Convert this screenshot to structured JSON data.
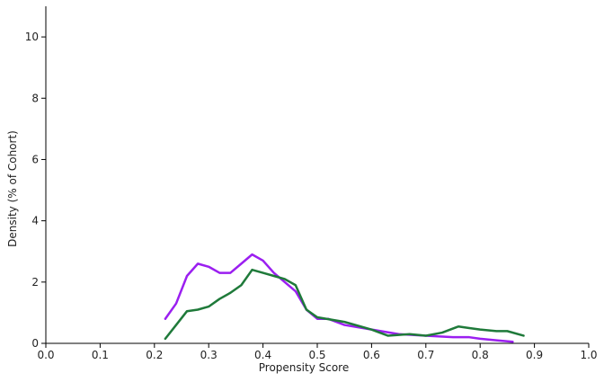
{
  "chart_data": {
    "type": "line",
    "x_label": "Propensity Score",
    "y_label": "Density (% of Cohort)",
    "xlim": [
      0,
      1
    ],
    "ylim": [
      0,
      11
    ],
    "xticks": [
      {
        "value": 0,
        "label": "0.0"
      },
      0.1,
      0.2,
      0.3,
      0.4,
      0.5,
      0.6,
      0.7,
      0.8,
      0.9,
      {
        "value": 1,
        "label": "1.0"
      }
    ],
    "yticks": [
      0,
      2,
      4,
      6,
      8,
      10
    ],
    "series": [
      {
        "color": "#9b1ff0",
        "x": [
          0.22,
          0.24,
          0.26,
          0.28,
          0.3,
          0.32,
          0.34,
          0.36,
          0.38,
          0.4,
          0.42,
          0.44,
          0.46,
          0.48,
          0.5,
          0.52,
          0.55,
          0.6,
          0.65,
          0.7,
          0.75,
          0.78,
          0.8,
          0.83,
          0.86
        ],
        "values": [
          0.8,
          1.3,
          2.2,
          2.6,
          2.5,
          2.3,
          2.3,
          2.6,
          2.9,
          2.7,
          2.3,
          2.0,
          1.7,
          1.1,
          0.8,
          0.8,
          0.6,
          0.45,
          0.3,
          0.25,
          0.2,
          0.2,
          0.15,
          0.1,
          0.05
        ]
      },
      {
        "color": "#1f7a3a",
        "x": [
          0.22,
          0.24,
          0.26,
          0.28,
          0.3,
          0.32,
          0.34,
          0.36,
          0.38,
          0.4,
          0.42,
          0.44,
          0.46,
          0.48,
          0.5,
          0.55,
          0.6,
          0.63,
          0.67,
          0.7,
          0.73,
          0.76,
          0.78,
          0.8,
          0.83,
          0.85,
          0.88
        ],
        "values": [
          0.15,
          0.6,
          1.05,
          1.1,
          1.2,
          1.45,
          1.65,
          1.9,
          2.4,
          2.3,
          2.2,
          2.1,
          1.9,
          1.1,
          0.85,
          0.7,
          0.45,
          0.25,
          0.3,
          0.25,
          0.35,
          0.55,
          0.5,
          0.45,
          0.4,
          0.4,
          0.25
        ]
      }
    ]
  }
}
